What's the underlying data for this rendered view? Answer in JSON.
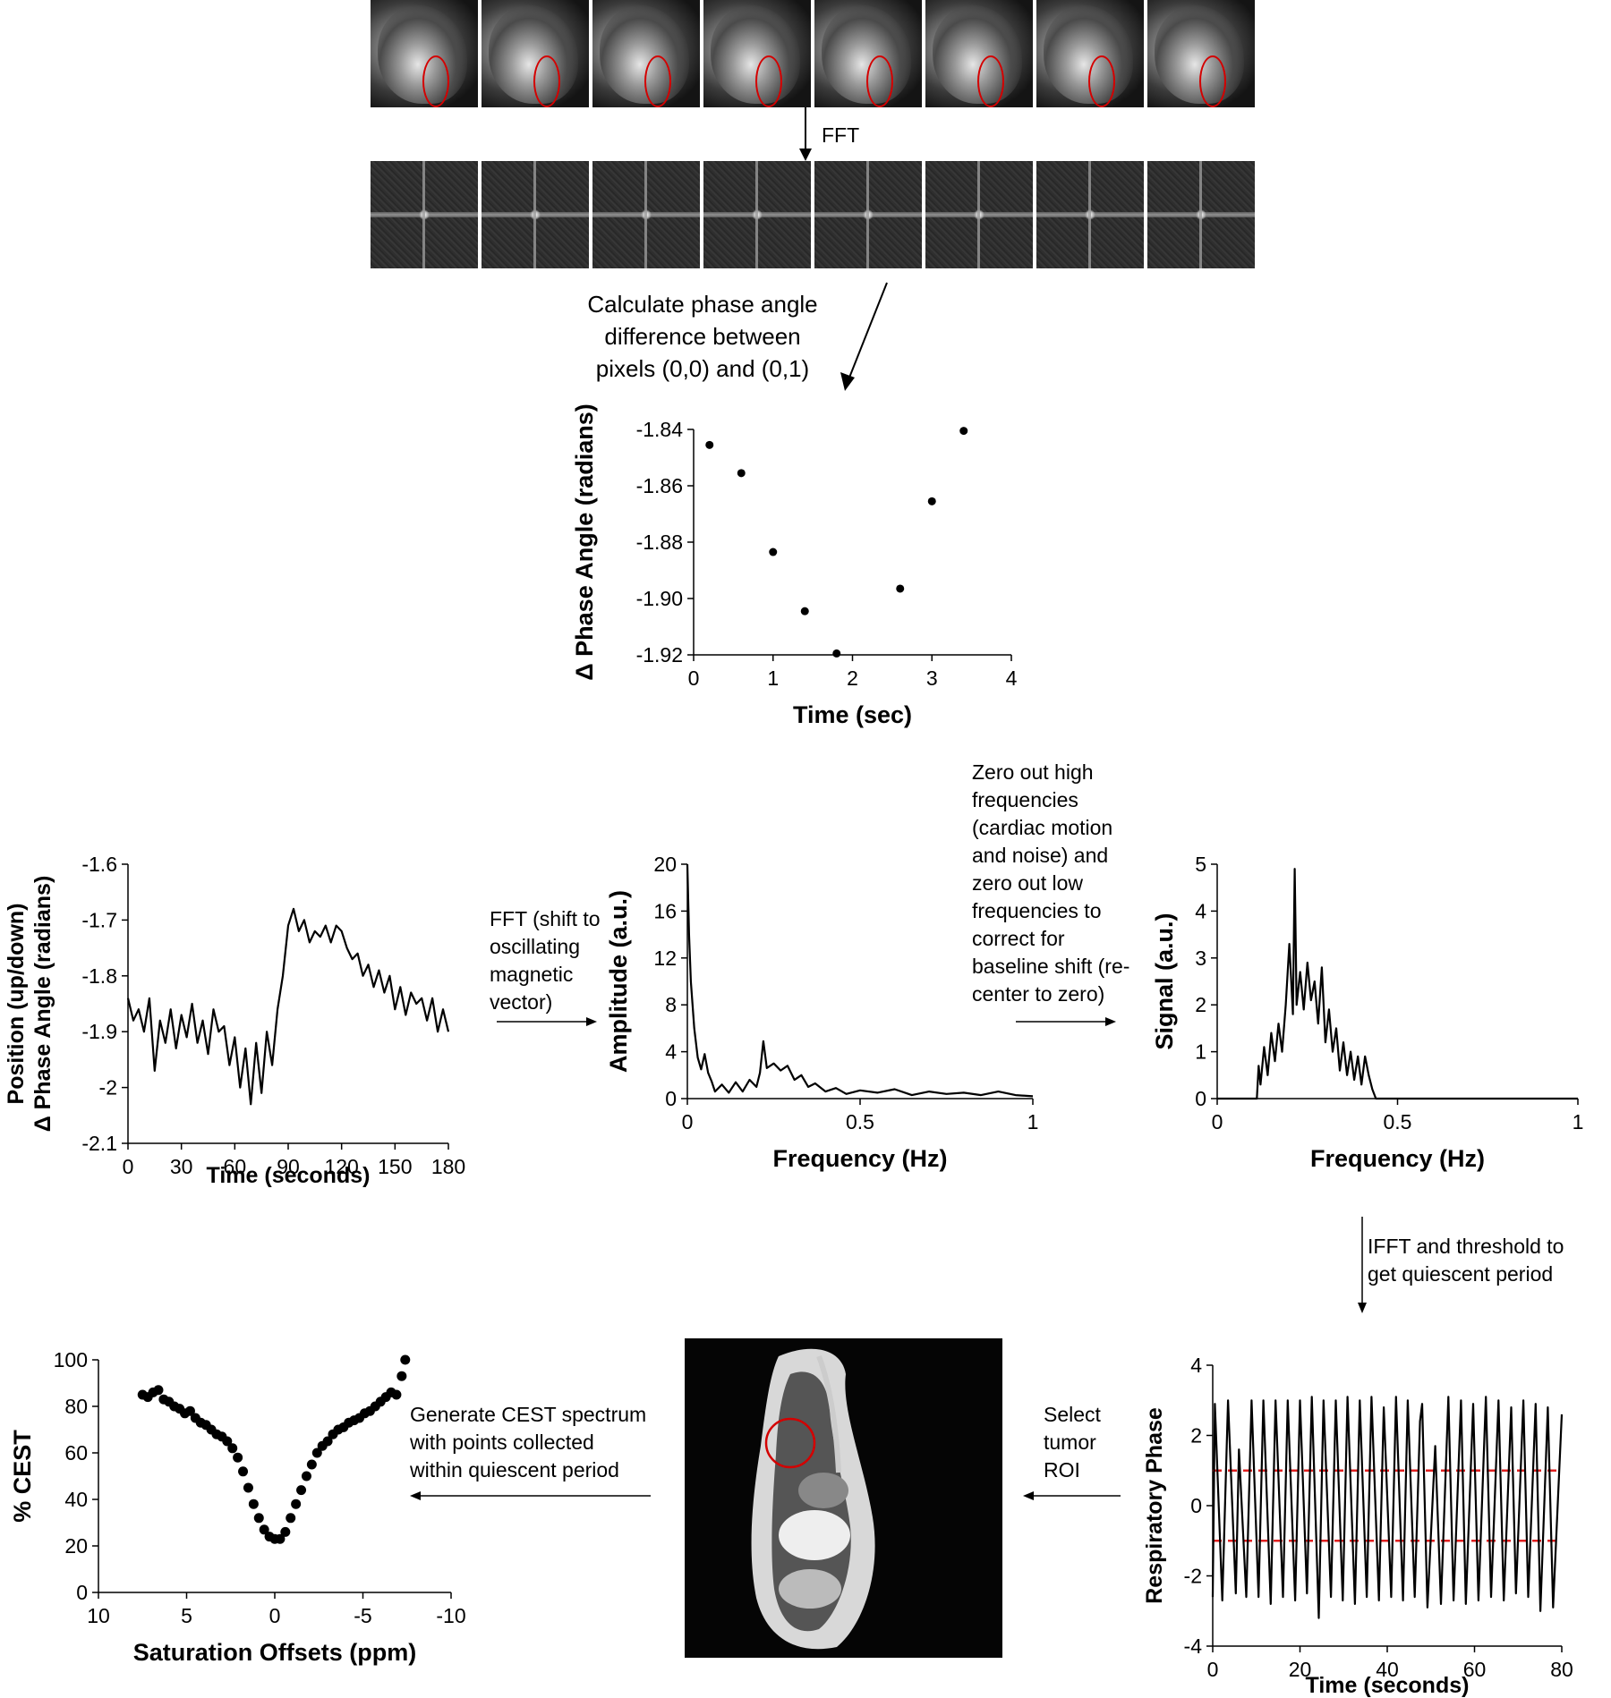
{
  "labels": {
    "fft_top": "FFT",
    "phase_calc": [
      "Calculate phase angle",
      "difference between",
      "pixels (0,0) and (0,1)"
    ],
    "fft_shift": [
      "FFT (shift to",
      "oscillating",
      "magnetic",
      "vector)"
    ],
    "zero_out": [
      "Zero out high",
      "frequencies",
      "(cardiac motion",
      "and noise) and",
      "zero out low",
      "frequencies to",
      "correct for",
      "baseline shift (re-",
      "center to zero)"
    ],
    "ifft": [
      "IFFT and threshold to",
      "get quiescent period"
    ],
    "select_roi": [
      "Select",
      "tumor",
      "ROI"
    ],
    "generate_cest": [
      "Generate CEST spectrum",
      "with points collected",
      "within quiescent period"
    ]
  },
  "colors": {
    "roi": "#d40000",
    "threshold": "#e02020",
    "ink": "#000000"
  },
  "chart_data": [
    {
      "id": "phase-scatter",
      "type": "scatter",
      "xlabel": "Time (sec)",
      "ylabel": "Δ Phase Angle (radians)",
      "xlim": [
        0,
        4
      ],
      "ylim": [
        -1.92,
        -1.84
      ],
      "xticks": [
        0,
        1,
        2,
        3,
        4
      ],
      "yticks": [
        -1.84,
        -1.86,
        -1.88,
        -1.9,
        -1.92
      ],
      "ytick_labels": [
        "-1.84",
        "-1.86",
        "-1.88",
        "-1.90",
        "-1.92"
      ],
      "x": [
        0.2,
        0.6,
        1.0,
        1.4,
        1.8,
        2.6,
        3.0,
        3.4
      ],
      "y": [
        -1.8455,
        -1.8555,
        -1.8835,
        -1.9045,
        -1.9195,
        -1.8965,
        -1.8655,
        -1.8405
      ]
    },
    {
      "id": "position-trace",
      "type": "line",
      "xlabel": "Time (seconds)",
      "ylabel": [
        "Position (up/down)",
        "Δ Phase Angle (radians)"
      ],
      "xlim": [
        0,
        180
      ],
      "ylim": [
        -2.1,
        -1.6
      ],
      "xticks": [
        0,
        30,
        60,
        90,
        120,
        150,
        180
      ],
      "yticks": [
        -1.6,
        -1.7,
        -1.8,
        -1.9,
        -2,
        -2.1
      ],
      "ytick_labels": [
        "-1.6",
        "-1.7",
        "-1.8",
        "-1.9",
        "-2",
        "-2.1"
      ],
      "x": [
        0,
        3,
        6,
        9,
        12,
        15,
        18,
        21,
        24,
        27,
        30,
        33,
        36,
        39,
        42,
        45,
        48,
        51,
        54,
        57,
        60,
        63,
        66,
        69,
        72,
        75,
        78,
        81,
        84,
        87,
        90,
        93,
        96,
        99,
        102,
        105,
        108,
        111,
        114,
        117,
        120,
        123,
        126,
        129,
        132,
        135,
        138,
        141,
        144,
        147,
        150,
        153,
        156,
        159,
        162,
        165,
        168,
        171,
        174,
        177,
        180
      ],
      "y": [
        -1.84,
        -1.88,
        -1.86,
        -1.9,
        -1.84,
        -1.97,
        -1.88,
        -1.92,
        -1.86,
        -1.93,
        -1.87,
        -1.91,
        -1.85,
        -1.92,
        -1.88,
        -1.94,
        -1.86,
        -1.9,
        -1.89,
        -1.96,
        -1.91,
        -2.0,
        -1.93,
        -2.03,
        -1.92,
        -2.01,
        -1.9,
        -1.96,
        -1.86,
        -1.8,
        -1.71,
        -1.68,
        -1.72,
        -1.7,
        -1.74,
        -1.72,
        -1.73,
        -1.71,
        -1.74,
        -1.71,
        -1.72,
        -1.75,
        -1.77,
        -1.76,
        -1.8,
        -1.78,
        -1.82,
        -1.79,
        -1.83,
        -1.8,
        -1.86,
        -1.82,
        -1.87,
        -1.83,
        -1.85,
        -1.84,
        -1.88,
        -1.84,
        -1.9,
        -1.86,
        -1.9
      ]
    },
    {
      "id": "amplitude-spectrum",
      "type": "line",
      "xlabel": "Frequency (Hz)",
      "ylabel": "Amplitude (a.u.)",
      "xlim": [
        0,
        1
      ],
      "ylim": [
        0,
        20
      ],
      "xticks": [
        0,
        0.5,
        1
      ],
      "xtick_labels": [
        "0",
        "0.5",
        "1"
      ],
      "yticks": [
        0,
        4,
        8,
        12,
        16,
        20
      ],
      "x": [
        0,
        0.005,
        0.01,
        0.02,
        0.03,
        0.04,
        0.05,
        0.06,
        0.07,
        0.08,
        0.1,
        0.12,
        0.14,
        0.16,
        0.18,
        0.2,
        0.21,
        0.22,
        0.23,
        0.25,
        0.27,
        0.29,
        0.31,
        0.33,
        0.35,
        0.37,
        0.4,
        0.43,
        0.46,
        0.5,
        0.55,
        0.6,
        0.65,
        0.7,
        0.75,
        0.8,
        0.85,
        0.9,
        0.95,
        1.0
      ],
      "y": [
        20,
        14,
        10,
        6,
        3.5,
        2.5,
        3.8,
        2.2,
        1.5,
        0.6,
        1.2,
        0.5,
        1.4,
        0.6,
        1.6,
        1.0,
        2.2,
        4.9,
        2.6,
        3.0,
        2.4,
        2.8,
        1.6,
        2.0,
        1.0,
        1.3,
        0.6,
        0.9,
        0.4,
        0.7,
        0.5,
        0.8,
        0.3,
        0.6,
        0.4,
        0.5,
        0.3,
        0.6,
        0.3,
        0.2
      ]
    },
    {
      "id": "filtered-spectrum",
      "type": "line",
      "xlabel": "Frequency (Hz)",
      "ylabel": "Signal (a.u.)",
      "xlim": [
        0,
        1
      ],
      "ylim": [
        0,
        5
      ],
      "xticks": [
        0,
        0.5,
        1
      ],
      "xtick_labels": [
        "0",
        "0.5",
        "1"
      ],
      "yticks": [
        0,
        1,
        2,
        3,
        4,
        5
      ],
      "x": [
        0,
        0.11,
        0.115,
        0.12,
        0.13,
        0.14,
        0.15,
        0.16,
        0.17,
        0.18,
        0.19,
        0.2,
        0.21,
        0.215,
        0.22,
        0.23,
        0.24,
        0.25,
        0.26,
        0.27,
        0.28,
        0.29,
        0.3,
        0.31,
        0.32,
        0.33,
        0.34,
        0.35,
        0.36,
        0.37,
        0.38,
        0.39,
        0.4,
        0.41,
        0.42,
        0.43,
        0.44,
        0.45,
        1.0
      ],
      "y": [
        0,
        0,
        0.7,
        0.3,
        1.1,
        0.5,
        1.4,
        0.8,
        1.6,
        1.0,
        2.0,
        3.3,
        1.8,
        4.9,
        2.0,
        2.7,
        1.9,
        2.9,
        2.1,
        2.5,
        1.6,
        2.8,
        1.2,
        1.9,
        1.0,
        1.5,
        0.6,
        1.2,
        0.5,
        1.0,
        0.4,
        0.9,
        0.3,
        0.9,
        0.5,
        0.2,
        0,
        0,
        0
      ]
    },
    {
      "id": "respiratory-phase",
      "type": "line",
      "xlabel": "Time (seconds)",
      "ylabel": "Respiratory Phase",
      "xlim": [
        0,
        80
      ],
      "ylim": [
        -4,
        4
      ],
      "xticks": [
        0,
        20,
        40,
        60,
        80
      ],
      "yticks": [
        4,
        2,
        0,
        -2,
        -4
      ],
      "thresholds": [
        1,
        -1
      ],
      "x": [
        0,
        0.5,
        2.2,
        3.5,
        5.3,
        6.0,
        7.7,
        8.9,
        10.5,
        11.6,
        13.3,
        14.4,
        16.1,
        17.2,
        18.9,
        20.0,
        21.6,
        22.7,
        24.3,
        25.4,
        27.1,
        28.2,
        29.8,
        30.9,
        32.6,
        33.7,
        35.3,
        36.4,
        38.1,
        39.2,
        40.9,
        42.0,
        43.6,
        44.7,
        46.3,
        47.5,
        48.0,
        49.2,
        51.0,
        52.3,
        54.0,
        55.2,
        56.9,
        58.0,
        59.7,
        60.9,
        62.6,
        63.8,
        65.5,
        66.7,
        68.4,
        69.5,
        71.2,
        72.3,
        74.0,
        75.1,
        76.8,
        78.0,
        80.0
      ],
      "y": [
        -2.6,
        2.9,
        -2.7,
        3.0,
        -2.5,
        1.6,
        -2.6,
        3.0,
        -2.6,
        3.0,
        -2.8,
        3.0,
        -2.6,
        3.0,
        -2.7,
        3.0,
        -2.5,
        3.1,
        -3.2,
        3.0,
        -2.6,
        3.0,
        -2.7,
        3.1,
        -2.8,
        3.0,
        -2.6,
        3.1,
        -2.7,
        2.8,
        -2.6,
        3.1,
        -2.7,
        3.0,
        -2.6,
        2.4,
        2.9,
        -2.9,
        1.7,
        -2.8,
        3.1,
        -2.7,
        3.0,
        -2.8,
        2.9,
        -2.7,
        3.1,
        -2.6,
        3.0,
        -2.7,
        2.8,
        -2.5,
        3.0,
        -2.6,
        2.9,
        -3.0,
        2.8,
        -2.9,
        2.6
      ]
    },
    {
      "id": "cest-spectrum",
      "type": "scatter",
      "xlabel": "Saturation Offsets (ppm)",
      "ylabel": "% CEST",
      "xlim": [
        10,
        -10
      ],
      "ylim": [
        0,
        100
      ],
      "xticks": [
        10,
        5,
        0,
        -5,
        -10
      ],
      "yticks": [
        0,
        20,
        40,
        60,
        80,
        100
      ],
      "x": [
        7.5,
        7.2,
        6.9,
        6.6,
        6.3,
        6.0,
        5.7,
        5.4,
        5.1,
        4.8,
        4.5,
        4.2,
        3.9,
        3.6,
        3.3,
        3.0,
        2.7,
        2.4,
        2.1,
        1.8,
        1.5,
        1.2,
        0.9,
        0.6,
        0.3,
        0.0,
        -0.3,
        -0.6,
        -0.9,
        -1.2,
        -1.5,
        -1.8,
        -2.1,
        -2.4,
        -2.7,
        -3.0,
        -3.3,
        -3.6,
        -3.9,
        -4.2,
        -4.5,
        -4.8,
        -5.1,
        -5.4,
        -5.7,
        -6.0,
        -6.3,
        -6.6,
        -6.9,
        -7.2,
        -7.4
      ],
      "y": [
        85,
        84,
        86,
        87,
        83,
        82,
        80,
        79,
        77,
        78,
        75,
        73,
        72,
        70,
        68,
        67,
        65,
        62,
        58,
        52,
        45,
        38,
        32,
        27,
        24,
        23,
        23,
        26,
        32,
        38,
        44,
        50,
        55,
        60,
        63,
        65,
        68,
        70,
        71,
        73,
        74,
        75,
        77,
        78,
        80,
        82,
        84,
        86,
        85,
        93,
        100
      ]
    }
  ]
}
